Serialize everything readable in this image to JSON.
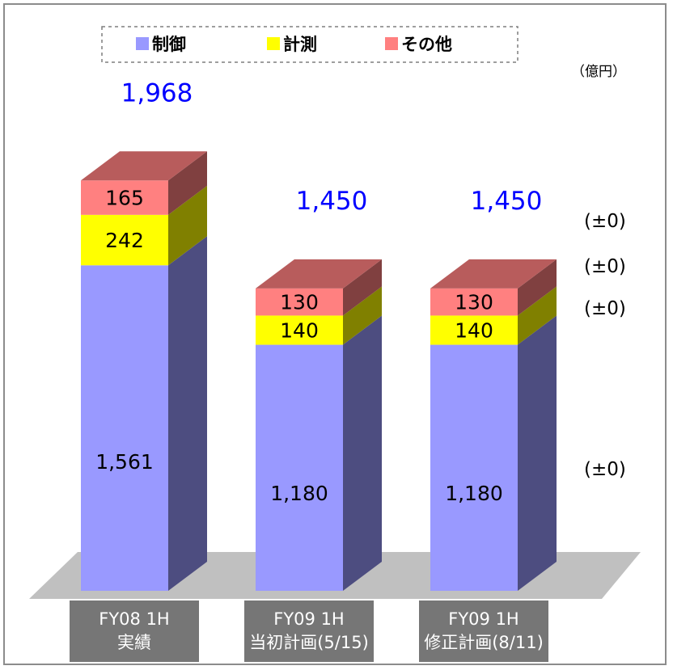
{
  "unit_label": "（億円）",
  "colors": {
    "control": "#9999ff",
    "measurement": "#ffff00",
    "other": "#ff8080",
    "floor": "#c0c0c0",
    "category_box": "#767676",
    "total_label": "#0000ff"
  },
  "chart_data": {
    "type": "bar",
    "stacked": true,
    "three_d": true,
    "categories": [
      {
        "line1": "FY08 1H",
        "line2": "実績"
      },
      {
        "line1": "FY09 1H",
        "line2": "当初計画(5/15)"
      },
      {
        "line1": "FY09 1H",
        "line2": "修正計画(8/11)"
      }
    ],
    "series": [
      {
        "name": "制御",
        "values": [
          1561,
          1180,
          1180
        ],
        "labels": [
          "1,561",
          "1,180",
          "1,180"
        ]
      },
      {
        "name": "計測",
        "values": [
          242,
          140,
          140
        ],
        "labels": [
          "242",
          "140",
          "140"
        ]
      },
      {
        "name": "その他",
        "values": [
          165,
          130,
          130
        ],
        "labels": [
          "165",
          "130",
          "130"
        ]
      }
    ],
    "totals": [
      1968,
      1450,
      1450
    ],
    "total_labels": [
      "1,968",
      "1,450",
      "1,450"
    ],
    "change_labels": {
      "total": "(±0)",
      "その他": "(±0)",
      "計測": "(±0)",
      "制御": "(±0)"
    },
    "legend_position": "top",
    "grid": false
  }
}
